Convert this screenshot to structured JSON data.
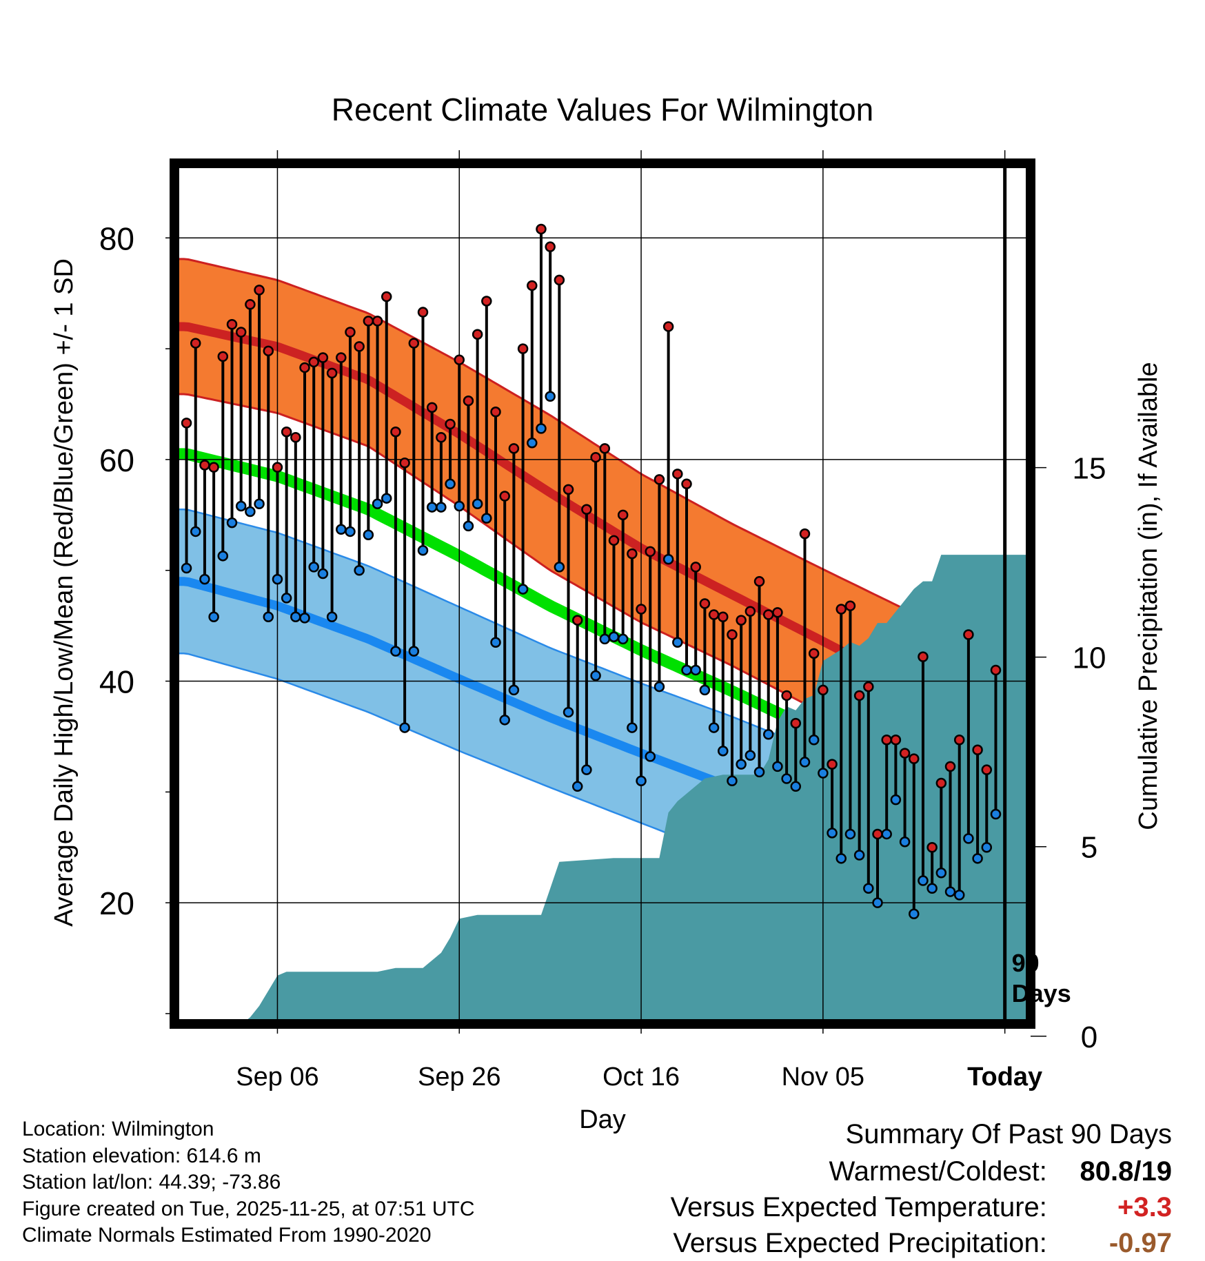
{
  "chart_data": {
    "type": "line",
    "title": "Recent Climate Values For Wilmington",
    "xlabel": "Day",
    "ylabel_left": "Average Daily High/Low/Mean (Red/Blue/Green) +/- 1 SD",
    "ylabel_right": "Cumulative Precipitation (in), If Available",
    "x_ticks": [
      "Sep 06",
      "Sep 26",
      "Oct 16",
      "Nov 05",
      "Today"
    ],
    "x_tick_days": [
      10,
      30,
      50,
      70,
      90
    ],
    "xlim": [
      -0.8,
      92.3
    ],
    "y_ticks_left": [
      "80",
      "60",
      "40",
      "20"
    ],
    "y_tick_values_left": [
      80,
      60,
      40,
      20
    ],
    "ylim_left": [
      9.5,
      86.3
    ],
    "y_ticks_right": [
      "0",
      "5",
      "10",
      "15"
    ],
    "y_tick_values_right": [
      0,
      5,
      10,
      15
    ],
    "ylim_right": [
      0.45,
      22.9
    ],
    "today_day": 90,
    "today_annotation": [
      "90",
      "Days"
    ],
    "normal_high": {
      "mean": [
        [
          0,
          72.0
        ],
        [
          10,
          70.2
        ],
        [
          20,
          67.2
        ],
        [
          30,
          62.3
        ],
        [
          40,
          57.0
        ],
        [
          50,
          52.0
        ],
        [
          60,
          47.8
        ],
        [
          70,
          43.6
        ],
        [
          80,
          39.3
        ],
        [
          90,
          34.4
        ],
        [
          94,
          31.5
        ]
      ],
      "sd": [
        6.1,
        6.0,
        6.0,
        6.5,
        7.0,
        6.7,
        6.4,
        6.5,
        6.8,
        7.3,
        7.5
      ]
    },
    "normal_low": {
      "mean": [
        [
          0,
          49.0
        ],
        [
          10,
          46.8
        ],
        [
          20,
          43.8
        ],
        [
          30,
          40.2
        ],
        [
          40,
          36.7
        ],
        [
          50,
          33.5
        ],
        [
          60,
          30.4
        ],
        [
          70,
          26.8
        ],
        [
          80,
          23.0
        ],
        [
          90,
          18.5
        ],
        [
          94,
          16.4
        ]
      ],
      "sd": [
        6.5,
        6.6,
        6.6,
        6.5,
        6.3,
        6.3,
        6.4,
        6.7,
        7.0,
        7.5,
        7.6
      ]
    },
    "normal_mean": [
      [
        0,
        60.5
      ],
      [
        10,
        58.5
      ],
      [
        20,
        55.5
      ],
      [
        30,
        51.3
      ],
      [
        40,
        46.8
      ],
      [
        50,
        42.8
      ],
      [
        60,
        39.1
      ],
      [
        70,
        35.2
      ],
      [
        80,
        31.2
      ],
      [
        90,
        26.4
      ],
      [
        94,
        23.9
      ]
    ],
    "series": [
      {
        "name": "Daily High",
        "color": "#d22222",
        "values": [
          63.3,
          70.5,
          59.5,
          59.3,
          69.3,
          72.2,
          71.5,
          74.0,
          75.3,
          69.8,
          59.3,
          62.5,
          62.0,
          68.3,
          68.8,
          69.2,
          67.8,
          69.2,
          71.5,
          70.2,
          72.5,
          72.5,
          74.7,
          62.5,
          59.7,
          70.5,
          73.3,
          64.7,
          62.0,
          63.2,
          69.0,
          65.3,
          71.3,
          74.3,
          64.3,
          56.7,
          61.0,
          70.0,
          75.7,
          80.8,
          79.2,
          76.2,
          57.3,
          45.5,
          55.5,
          60.2,
          61.0,
          52.7,
          55.0,
          51.5,
          46.5,
          51.7,
          58.2,
          72.0,
          58.7,
          57.8,
          50.3,
          47.0,
          46.0,
          45.8,
          44.2,
          45.5,
          46.3,
          49.0,
          46.0,
          46.2,
          38.7,
          36.2,
          53.3,
          42.5,
          39.2,
          32.5,
          46.5,
          46.8,
          38.7,
          39.5,
          26.2,
          34.7,
          34.7,
          33.5,
          33.0,
          42.2,
          25.0,
          30.8,
          32.3,
          34.7,
          44.2,
          33.8,
          32.0,
          41.0
        ]
      },
      {
        "name": "Daily Low",
        "color": "#1a7fe0",
        "values": [
          50.2,
          53.5,
          49.2,
          45.8,
          51.3,
          54.3,
          55.8,
          55.3,
          56.0,
          45.8,
          49.2,
          47.5,
          45.8,
          45.7,
          50.3,
          49.7,
          45.8,
          53.7,
          53.5,
          50.0,
          53.2,
          56.0,
          56.5,
          42.7,
          35.8,
          42.7,
          51.8,
          55.7,
          55.7,
          57.8,
          55.8,
          54.0,
          56.0,
          54.7,
          43.5,
          36.5,
          39.2,
          48.3,
          61.5,
          62.8,
          65.7,
          50.3,
          37.2,
          30.5,
          32.0,
          40.5,
          43.8,
          44.0,
          43.8,
          35.8,
          31.0,
          33.2,
          39.5,
          51.0,
          43.5,
          41.0,
          41.0,
          39.2,
          35.8,
          33.7,
          31.0,
          32.5,
          33.3,
          31.8,
          35.2,
          32.3,
          31.2,
          30.5,
          32.7,
          34.7,
          31.7,
          26.3,
          24.0,
          26.2,
          24.3,
          21.3,
          20.0,
          26.2,
          29.3,
          25.5,
          19.0,
          22.0,
          21.3,
          22.7,
          21.0,
          20.7,
          25.8,
          24.0,
          25.0,
          28.0
        ]
      },
      {
        "name": "Cumulative Precipitation",
        "values": [
          [
            0,
            0
          ],
          [
            1,
            0
          ],
          [
            2,
            0.1
          ],
          [
            3,
            0.2
          ],
          [
            4,
            0.2
          ],
          [
            5,
            0.3
          ],
          [
            6,
            0.3
          ],
          [
            7,
            0.5
          ],
          [
            8,
            0.8
          ],
          [
            9,
            1.2
          ],
          [
            10,
            1.6
          ],
          [
            11,
            1.7
          ],
          [
            13,
            1.7
          ],
          [
            20,
            1.7
          ],
          [
            21,
            1.7
          ],
          [
            23,
            1.8
          ],
          [
            26,
            1.8
          ],
          [
            27,
            2.0
          ],
          [
            28,
            2.2
          ],
          [
            29,
            2.6
          ],
          [
            30,
            3.1
          ],
          [
            32,
            3.2
          ],
          [
            38,
            3.2
          ],
          [
            39,
            3.2
          ],
          [
            40,
            3.9
          ],
          [
            41,
            4.6
          ],
          [
            47,
            4.7
          ],
          [
            52,
            4.7
          ],
          [
            53,
            5.9
          ],
          [
            54,
            6.2
          ],
          [
            55,
            6.4
          ],
          [
            57,
            6.8
          ],
          [
            59,
            6.9
          ],
          [
            63,
            6.9
          ],
          [
            64,
            7.3
          ],
          [
            65,
            8.3
          ],
          [
            66,
            8.7
          ],
          [
            67,
            8.6
          ],
          [
            68,
            8.9
          ],
          [
            69,
            9.0
          ],
          [
            70,
            9.9
          ],
          [
            72,
            10.2
          ],
          [
            73,
            10.4
          ],
          [
            74,
            10.3
          ],
          [
            75,
            10.5
          ],
          [
            76,
            10.9
          ],
          [
            77,
            10.9
          ],
          [
            78,
            11.2
          ],
          [
            79,
            11.5
          ],
          [
            80,
            11.8
          ],
          [
            81,
            12.0
          ],
          [
            82,
            12.0
          ],
          [
            83,
            12.7
          ],
          [
            84,
            12.7
          ],
          [
            90,
            12.7
          ],
          [
            94,
            12.7
          ]
        ]
      }
    ]
  },
  "info": {
    "location": "Location: Wilmington",
    "elevation": "Station elevation: 614.6 m",
    "latlon": "Station lat/lon: 44.39; -73.86",
    "created": "Figure created on Tue, 2025-11-25, at 07:51 UTC",
    "normals": "Climate Normals Estimated From 1990-2020"
  },
  "summary": {
    "title": "Summary Of Past 90 Days",
    "warmest_label": "Warmest/Coldest:",
    "warmest_value": "80.8/19",
    "temp_label": "Versus Expected Temperature:",
    "temp_value": "+3.3",
    "temp_color": "#d22222",
    "precip_label": "Versus Expected Precipitation:",
    "precip_value": "-0.97",
    "precip_color": "#9a5a2c"
  }
}
